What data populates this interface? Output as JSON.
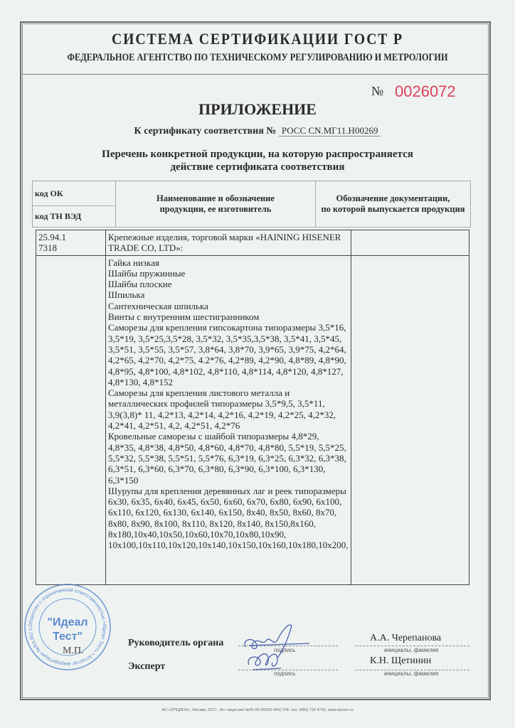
{
  "header": {
    "system": "СИСТЕМА СЕРТИФИКАЦИИ ГОСТ Р",
    "agency": "ФЕДЕРАЛЬНОЕ АГЕНТСТВО ПО ТЕХНИЧЕСКОМУ РЕГУЛИРОВАНИЮ И МЕТРОЛОГИИ",
    "number_label": "№",
    "number": "0026072",
    "number_color": "#e0405a",
    "title": "ПРИЛОЖЕНИЕ",
    "cert_label": "К сертификату соответствия №",
    "cert_number": "РОСС CN.МГ11.Н00269",
    "subtitle_line1": "Перечень конкретной продукции,  на которую распространяется",
    "subtitle_line2": "действие сертификата соответствия"
  },
  "table_header": {
    "code_ok": "код ОК",
    "code_tn": "код ТН ВЭД",
    "col_name_1": "Наименование и обозначение",
    "col_name_2": "продукции, ее изготовитель",
    "col_doc_1": "Обозначение документации,",
    "col_doc_2": "по которой выпускается продукция"
  },
  "rows": {
    "code_ok": "25.94.1",
    "code_tn": "7318",
    "group": "Крепежные изделия, торговой марки «HAINING HISENER TRADE CO, LTD»:",
    "items": [
      "Гайка низкая",
      "Шайбы пружинные",
      "Шайбы плоские",
      "Шпилька",
      "Сантехническая шпилька",
      "Винты с внутренним шестигранником",
      "Саморезы для крепления гипсокартона типоразмеры 3,5*16, 3,5*19, 3,5*25,3,5*28, 3,5*32, 3,5*35,3,5*38, 3,5*41, 3,5*45, 3,5*51, 3,5*55, 3,5*57, 3,8*64, 3,8*70, 3,9*65, 3,9*75, 4,2*64, 4,2*65, 4,2*70, 4,2*75, 4.2*76, 4,2*89, 4,2*90, 4,8*89, 4,8*90, 4,8*95, 4,8*100, 4,8*102, 4,8*110, 4,8*114, 4,8*120, 4,8*127, 4,8*130, 4,8*152",
      "Саморезы для крепления листового металла и металлических профилей типоразмеры 3,5*9,5, 3,5*11, 3,9(3,8)* 11, 4,2*13, 4,2*14, 4,2*16, 4,2*19, 4,2*25, 4,2*32, 4,2*41, 4,2*51, 4,2, 4,2*51, 4,2*76",
      "Кровельные саморезы с шайбой типоразмеры 4,8*29, 4,8*35, 4,8*38, 4,8*50, 4,8*60, 4,8*70, 4,8*80, 5,5*19, 5,5*25, 5,5*32, 5,5*38, 5,5*51, 5,5*76, 6,3*19, 6,3*25, 6,3*32, 6,3*38, 6,3*51, 6,3*60, 6,3*70, 6,3*80, 6,3*90, 6,3*100, 6,3*130, 6,3*150",
      "Шурупы для крепления деревянных лаг и реек типоразмеры 6х30, 6х35, 6х40, 6х45, 6х50, 6х60, 6х70, 6х80, 6х90, 6х100, 6х110, 6х120, 6х130, 6х140, 6х150, 8х40, 8х50, 8х60, 8х70, 8х80, 8х90, 8х100, 8х110, 8х120, 8х140, 8х150,8х160, 8х180,10х40,10х50,10х60,10х70,10х80,10х90, 10х100,10х110,10х120,10х140,10х150,10х160,10х180,10х200,"
    ]
  },
  "signatures": {
    "head_label": "Руководитель органа",
    "head_name": "А.А. Черепанова",
    "expert_label": "Эксперт",
    "expert_name": "К.Н. Щетинин",
    "sign_caption": "подпись",
    "name_caption": "инициалы, фамилия",
    "mp": "М.П."
  },
  "stamp": {
    "center_text": "\"Идеал Тест\"",
    "ring_text": "Общество с ограниченной ответственностью «Идеал Тест» • Аттестат аккредитации №RA.RU.11МГ11 • ОГРН 1137746976020 • Орган по сертификации • г.Москва",
    "color": "#3b6fc4"
  },
  "footer": "АО «ОПЦИОН», Москва, 2017, «Б»   лицензия №05-05-09/003 ФНС РФ, тел. (495) 726 4743, www.opcion.ru"
}
